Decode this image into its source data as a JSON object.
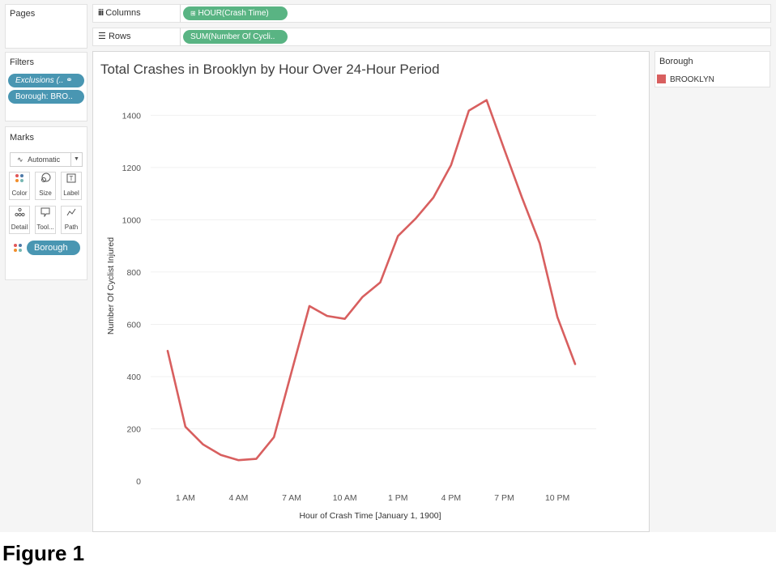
{
  "shelves": {
    "pages_label": "Pages",
    "columns_label": "Columns",
    "columns_pill": "HOUR(Crash Time)",
    "rows_label": "Rows",
    "rows_pill": "SUM(Number Of Cycli.."
  },
  "filters": {
    "title": "Filters",
    "items": [
      "Exclusions (..",
      "Borough: BRO.."
    ]
  },
  "marks": {
    "title": "Marks",
    "mark_type": "Automatic",
    "buttons": [
      {
        "label": "Color",
        "icon": "color-dots-icon"
      },
      {
        "label": "Size",
        "icon": "size-icon"
      },
      {
        "label": "Label",
        "icon": "label-icon"
      },
      {
        "label": "Detail",
        "icon": "detail-icon"
      },
      {
        "label": "Tool...",
        "icon": "tooltip-icon"
      },
      {
        "label": "Path",
        "icon": "path-icon"
      }
    ],
    "color_field": "Borough"
  },
  "legend": {
    "title": "Borough",
    "items": [
      {
        "label": "BROOKLYN",
        "color": "#d85f5f"
      }
    ]
  },
  "figure_caption": "Figure 1",
  "colors": {
    "line": "#d85f5f",
    "pill_blue": "#4996b2",
    "pill_green": "#59b483"
  },
  "chart_data": {
    "type": "line",
    "title": "Total Crashes in Brooklyn by Hour Over 24-Hour Period",
    "xlabel": "Hour of Crash Time [January 1, 1900]",
    "ylabel": "Number Of Cyclist Injured",
    "x": [
      "12 AM",
      "1 AM",
      "2 AM",
      "3 AM",
      "4 AM",
      "5 AM",
      "6 AM",
      "7 AM",
      "8 AM",
      "9 AM",
      "10 AM",
      "11 AM",
      "12 PM",
      "1 PM",
      "2 PM",
      "3 PM",
      "4 PM",
      "5 PM",
      "6 PM",
      "7 PM",
      "8 PM",
      "9 PM",
      "10 PM",
      "11 PM"
    ],
    "x_tick_labels": [
      "1 AM",
      "4 AM",
      "7 AM",
      "10 AM",
      "1 PM",
      "4 PM",
      "7 PM",
      "10 PM"
    ],
    "series": [
      {
        "name": "BROOKLYN",
        "values": [
          498,
          208,
          140,
          100,
          80,
          85,
          168,
          420,
          670,
          632,
          621,
          705,
          760,
          938,
          1005,
          1085,
          1210,
          1418,
          1458,
          1270,
          1085,
          910,
          628,
          448
        ]
      }
    ],
    "ylim": [
      0,
      1500
    ],
    "y_ticks": [
      0,
      200,
      400,
      600,
      800,
      1000,
      1200,
      1400
    ],
    "grid": true,
    "legend_position": "right"
  }
}
